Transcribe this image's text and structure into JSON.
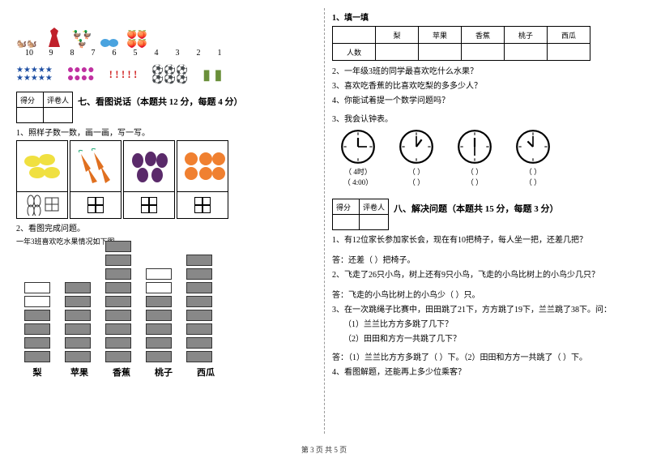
{
  "counts": {
    "nums": [
      "10",
      "9",
      "8",
      "7",
      "6",
      "5",
      "4",
      "3",
      "2",
      "1"
    ]
  },
  "section7": {
    "title": "七、看图说话（本题共 12 分，每题 4 分）",
    "q1": "1、照样子数一数，画一画，写一写。",
    "q2": "2、看图完成问题。",
    "q2sub": "一年3班喜欢吃水果情况如下图",
    "score_head": [
      "得分",
      "评卷人"
    ]
  },
  "bars": {
    "labels": [
      "梨",
      "苹果",
      "香蕉",
      "桃子",
      "西瓜"
    ],
    "counts": [
      4,
      6,
      9,
      5,
      8
    ],
    "max": 9
  },
  "right": {
    "t1_title": "1、填一填",
    "table_head": [
      "",
      "梨",
      "苹果",
      "香蕉",
      "桃子",
      "西瓜"
    ],
    "table_row_label": "人数",
    "q2": "2、一年级3班的同学最喜欢吃什么水果？",
    "q3": "3、喜欢吃香蕉的比喜欢吃梨的多多少人？",
    "q4": "4、你能试着提一个数学问题吗？",
    "clock_title": "3、我会认钟表。",
    "clock_time_l1": "（   4时）",
    "clock_time_l2": "（  4:00）",
    "clock_blank": "（        ）"
  },
  "section8": {
    "title": "八、解决问题（本题共 15 分，每题 3 分）",
    "score_head": [
      "得分",
      "评卷人"
    ],
    "q1": "1、有12位家长参加家长会，现在有10把椅子，每人坐一把，还差几把？",
    "q1a": "答：还差（   ）把椅子。",
    "q2": "2、飞走了26只小鸟，树上还有9只小鸟，飞走的小鸟比树上的小鸟少几只？",
    "q2a": "答：飞走的小鸟比树上的小鸟少（   ）只。",
    "q3": "3、在一次跳绳子比赛中，田田跳了21下，方方跳了19下，兰兰跳了38下。问：",
    "q3_1": "（1）兰兰比方方多跳了几下？",
    "q3_2": "（2）田田和方方一共跳了几下？",
    "q3a": "答：（1）兰兰比方方多跳了（   ）下。（2）田田和方方一共跳了（   ）下。",
    "q4": "4、看图解题，还能再上多少位乘客？"
  },
  "footer": "第 3 页 共 5 页"
}
